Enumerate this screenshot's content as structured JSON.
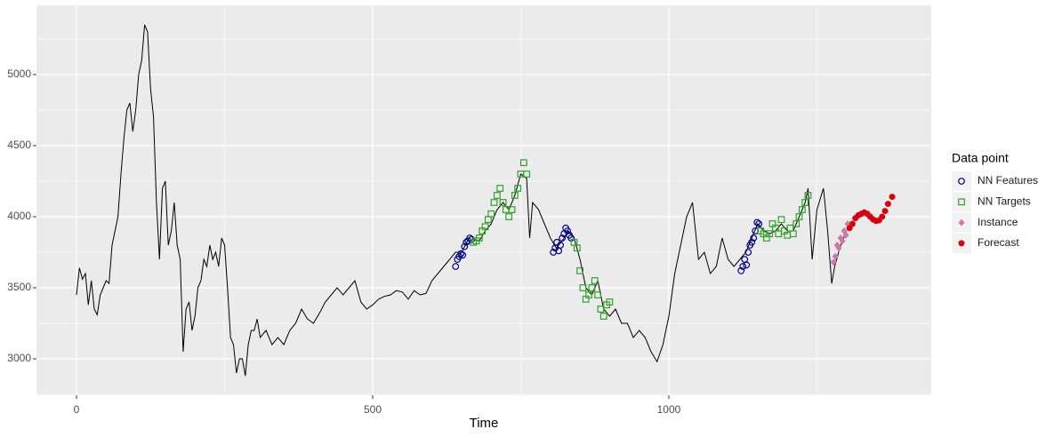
{
  "chart_data": {
    "type": "line",
    "x_label": "Time",
    "legend_title": "Data point",
    "legend_position": "right",
    "grid": true,
    "xlim": [
      -67.6,
      1443
    ],
    "ylim": [
      2744,
      5487
    ],
    "xticks": [
      0,
      500,
      1000
    ],
    "yticks": [
      3000,
      3500,
      4000,
      4500,
      5000
    ],
    "line": {
      "color": "#000000",
      "x": [
        0,
        5,
        10,
        15,
        20,
        25,
        30,
        35,
        40,
        45,
        50,
        55,
        60,
        65,
        70,
        75,
        80,
        85,
        90,
        95,
        100,
        105,
        110,
        115,
        120,
        125,
        130,
        135,
        140,
        145,
        150,
        155,
        160,
        165,
        170,
        175,
        180,
        185,
        190,
        195,
        200,
        205,
        210,
        215,
        220,
        225,
        230,
        235,
        240,
        245,
        250,
        255,
        260,
        265,
        270,
        275,
        280,
        285,
        290,
        295,
        300,
        305,
        310,
        320,
        330,
        340,
        350,
        360,
        370,
        380,
        390,
        400,
        410,
        420,
        430,
        440,
        450,
        460,
        470,
        480,
        490,
        500,
        510,
        520,
        530,
        540,
        550,
        560,
        570,
        580,
        590,
        600,
        610,
        620,
        630,
        640,
        650,
        660,
        670,
        680,
        690,
        700,
        710,
        720,
        730,
        740,
        750,
        760,
        765,
        770,
        780,
        790,
        800,
        810,
        820,
        830,
        840,
        850,
        860,
        870,
        880,
        890,
        900,
        910,
        920,
        930,
        940,
        950,
        960,
        970,
        980,
        990,
        1000,
        1010,
        1020,
        1030,
        1040,
        1050,
        1060,
        1070,
        1080,
        1090,
        1100,
        1110,
        1120,
        1130,
        1140,
        1150,
        1160,
        1170,
        1180,
        1190,
        1200,
        1210,
        1220,
        1230,
        1235,
        1242,
        1250,
        1261,
        1268,
        1275,
        1280,
        1290,
        1300
      ],
      "values": [
        3450,
        3640,
        3560,
        3600,
        3380,
        3550,
        3350,
        3310,
        3450,
        3500,
        3550,
        3530,
        3800,
        3900,
        4000,
        4300,
        4550,
        4750,
        4800,
        4600,
        4750,
        5000,
        5100,
        5350,
        5300,
        4900,
        4700,
        4100,
        3700,
        4200,
        4250,
        3800,
        3900,
        4100,
        3800,
        3700,
        3050,
        3350,
        3400,
        3200,
        3300,
        3500,
        3550,
        3700,
        3650,
        3800,
        3700,
        3750,
        3650,
        3850,
        3800,
        3500,
        3150,
        3100,
        2900,
        3000,
        3000,
        2880,
        3100,
        3200,
        3200,
        3280,
        3150,
        3200,
        3100,
        3150,
        3100,
        3200,
        3250,
        3350,
        3280,
        3250,
        3320,
        3400,
        3450,
        3500,
        3450,
        3500,
        3550,
        3400,
        3350,
        3380,
        3420,
        3440,
        3450,
        3480,
        3470,
        3420,
        3480,
        3450,
        3460,
        3550,
        3600,
        3650,
        3700,
        3750,
        3750,
        3830,
        3840,
        3830,
        3900,
        3950,
        4050,
        4100,
        4050,
        4150,
        4300,
        4270,
        3850,
        4100,
        4050,
        3950,
        3850,
        3780,
        3830,
        3900,
        3850,
        3700,
        3500,
        3450,
        3550,
        3350,
        3300,
        3350,
        3250,
        3250,
        3150,
        3200,
        3150,
        3050,
        2980,
        3100,
        3300,
        3600,
        3800,
        4000,
        4100,
        3700,
        3750,
        3600,
        3650,
        3850,
        3700,
        3650,
        3700,
        3750,
        3850,
        3950,
        3900,
        3880,
        3900,
        3950,
        3900,
        3900,
        4000,
        4100,
        4200,
        3700,
        4050,
        4200,
        3900,
        3530,
        3650,
        3800,
        3900
      ]
    },
    "series": [
      {
        "name": "NN Features",
        "color": "#00008b",
        "shape": "circle",
        "x": [
          640,
          643,
          646,
          649,
          652,
          655,
          658,
          661,
          664,
          667,
          805,
          808,
          811,
          814,
          817,
          820,
          823,
          826,
          829,
          832,
          835,
          1122,
          1125,
          1128,
          1131,
          1134,
          1137,
          1140,
          1143,
          1146,
          1149,
          1152
        ],
        "values": [
          3650,
          3700,
          3720,
          3740,
          3730,
          3790,
          3820,
          3830,
          3850,
          3840,
          3750,
          3780,
          3820,
          3760,
          3800,
          3850,
          3880,
          3920,
          3900,
          3870,
          3850,
          3620,
          3650,
          3700,
          3660,
          3750,
          3800,
          3820,
          3850,
          3900,
          3960,
          3950
        ]
      },
      {
        "name": "NN Targets",
        "color": "#33a02c",
        "shape": "square",
        "x": [
          670,
          675,
          680,
          685,
          690,
          695,
          700,
          705,
          710,
          715,
          720,
          725,
          730,
          735,
          740,
          745,
          750,
          755,
          760,
          840,
          845,
          850,
          855,
          860,
          865,
          870,
          875,
          880,
          885,
          890,
          895,
          900,
          1155,
          1160,
          1165,
          1170,
          1175,
          1180,
          1185,
          1190,
          1195,
          1200,
          1205,
          1210,
          1215,
          1220,
          1225,
          1230,
          1235
        ],
        "values": [
          3820,
          3830,
          3850,
          3900,
          3930,
          3980,
          4020,
          4100,
          4150,
          4200,
          4100,
          4050,
          4000,
          4050,
          4150,
          4200,
          4300,
          4380,
          4300,
          3820,
          3780,
          3620,
          3500,
          3420,
          3450,
          3500,
          3550,
          3450,
          3350,
          3300,
          3380,
          3400,
          3900,
          3880,
          3850,
          3880,
          3950,
          3920,
          3880,
          3980,
          3900,
          3870,
          3920,
          3880,
          3950,
          4000,
          4050,
          4100,
          4150
        ]
      },
      {
        "name": "Instance",
        "color": "#cc79a7",
        "shape": "diamond",
        "x": [
          1278,
          1281,
          1284,
          1287,
          1290,
          1293,
          1296,
          1299,
          1302,
          1305
        ],
        "values": [
          3680,
          3720,
          3800,
          3780,
          3850,
          3830,
          3900,
          3870,
          3950,
          3930
        ]
      },
      {
        "name": "Forecast",
        "color": "#d7000f",
        "shape": "dot",
        "x": [
          1305,
          1310,
          1315,
          1320,
          1325,
          1330,
          1335,
          1340,
          1345,
          1350,
          1355,
          1360,
          1365,
          1370,
          1377
        ],
        "values": [
          3920,
          3950,
          3990,
          4010,
          4020,
          4030,
          4020,
          4000,
          3980,
          3970,
          3975,
          4000,
          4040,
          4090,
          4140
        ]
      }
    ]
  }
}
